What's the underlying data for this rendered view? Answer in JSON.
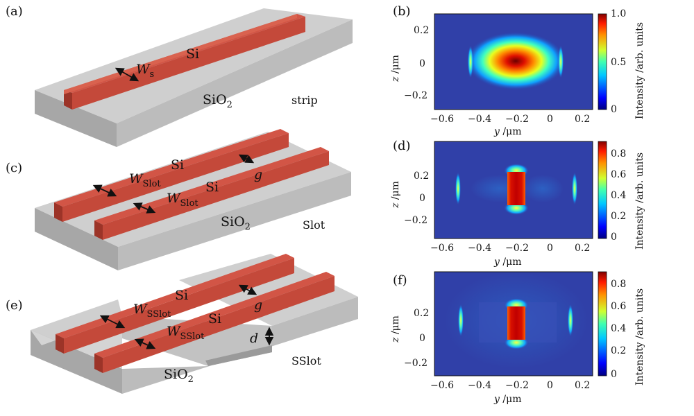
{
  "panels": {
    "a": {
      "label": "(a)",
      "core": "Si",
      "substrate": "SiO",
      "substrate_sub": "2",
      "width_symbol": "W",
      "width_sub": "s",
      "name": "strip"
    },
    "c": {
      "label": "(c)",
      "core1": "Si",
      "core2": "Si",
      "substrate": "SiO",
      "substrate_sub": "2",
      "width_symbol": "W",
      "width_sub": "Slot",
      "gap": "g",
      "name": "Slot"
    },
    "e": {
      "label": "(e)",
      "core1": "Si",
      "core2": "Si",
      "substrate": "SiO",
      "substrate_sub": "2",
      "width_symbol": "W",
      "width_sub": "SSlot",
      "gap": "g",
      "depth": "d",
      "name": "SSlot"
    }
  },
  "plots": [
    {
      "label": "(b)",
      "name": "strip",
      "xticks": [
        "−0.6",
        "−0.4",
        "−0.2",
        "0",
        "0.2"
      ],
      "yticks": [
        "0.2",
        "0",
        "−0.2"
      ],
      "colorbar_ticks": [
        "1.0",
        "0.5",
        "0"
      ],
      "colorbar_label": "Intensity /arb. units",
      "xlabel_var": "y",
      "xlabel_unit": " /μm",
      "ylabel_var": "z",
      "ylabel_unit": " /μm"
    },
    {
      "label": "(d)",
      "name": "slot",
      "xticks": [
        "−0.6",
        "−0.4",
        "−0.2",
        "0",
        "0.2"
      ],
      "yticks": [
        "0.2",
        "0",
        "−0.2"
      ],
      "colorbar_ticks": [
        "0.8",
        "0.6",
        "0.4",
        "0.2",
        "0"
      ],
      "colorbar_label": "Intensity /arb. units",
      "xlabel_var": "y",
      "xlabel_unit": " /μm",
      "ylabel_var": "z",
      "ylabel_unit": " /μm"
    },
    {
      "label": "(f)",
      "name": "sslot",
      "xticks": [
        "−0.6",
        "−0.4",
        "−0.2",
        "0",
        "0.2"
      ],
      "yticks": [
        "0.2",
        "0",
        "−0.2"
      ],
      "colorbar_ticks": [
        "0.8",
        "0.6",
        "0.4",
        "0.2",
        "0"
      ],
      "colorbar_label": "Intensity /arb. units",
      "xlabel_var": "y",
      "xlabel_unit": " /μm",
      "ylabel_var": "z",
      "ylabel_unit": " /μm"
    }
  ],
  "colors": {
    "silicon": "#c4493a",
    "silicon_top": "#cf5244",
    "oxide_top": "#cfcfcf",
    "oxide_side": "#a9a9a9",
    "field_bg": "#3040a8"
  }
}
